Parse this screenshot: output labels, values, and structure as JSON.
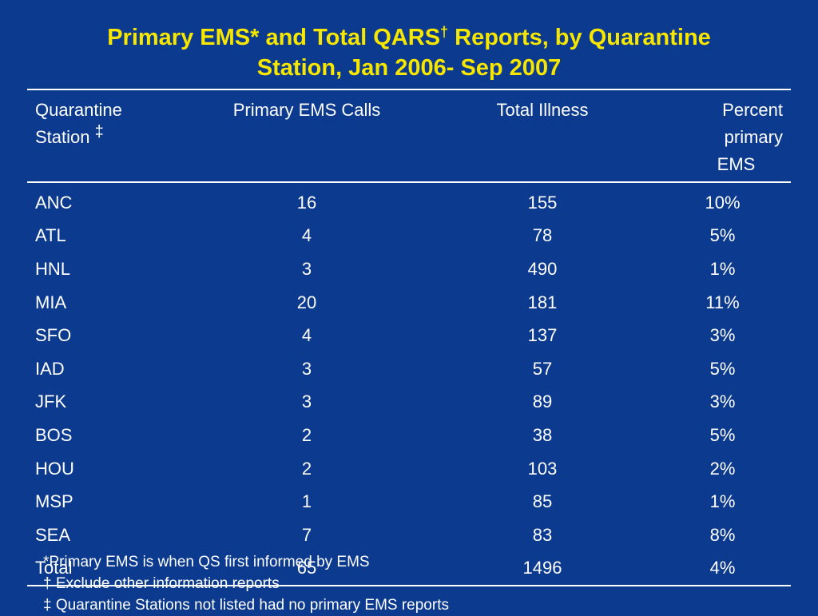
{
  "title": {
    "line1_a": "Primary EMS* and Total QARS",
    "line1_dagger": "†",
    "line1_b": " Reports, by Quarantine",
    "line2": "Station, Jan 2006- Sep 2007"
  },
  "table": {
    "headers": {
      "station_line1": "Quarantine",
      "station_line2": "Station",
      "station_mark": "‡",
      "ems": "Primary EMS Calls",
      "illness": "Total Illness",
      "pct_line1": "Percent primary",
      "pct_line2": "EMS"
    },
    "rows": [
      {
        "station": "ANC",
        "ems": "16",
        "illness": "155",
        "pct": "10%"
      },
      {
        "station": "ATL",
        "ems": "4",
        "illness": "78",
        "pct": "5%"
      },
      {
        "station": "HNL",
        "ems": "3",
        "illness": "490",
        "pct": "1%"
      },
      {
        "station": "MIA",
        "ems": "20",
        "illness": "181",
        "pct": "11%"
      },
      {
        "station": "SFO",
        "ems": "4",
        "illness": "137",
        "pct": "3%"
      },
      {
        "station": "IAD",
        "ems": "3",
        "illness": "57",
        "pct": "5%"
      },
      {
        "station": "JFK",
        "ems": "3",
        "illness": "89",
        "pct": "3%"
      },
      {
        "station": "BOS",
        "ems": "2",
        "illness": "38",
        "pct": "5%"
      },
      {
        "station": "HOU",
        "ems": "2",
        "illness": "103",
        "pct": "2%"
      },
      {
        "station": "MSP",
        "ems": "1",
        "illness": "85",
        "pct": "1%"
      },
      {
        "station": "SEA",
        "ems": "7",
        "illness": "83",
        "pct": "8%"
      },
      {
        "station": "Total",
        "ems": "65",
        "illness": "1496",
        "pct": "4%"
      }
    ]
  },
  "footnotes": [
    "*Primary EMS is when QS first informed by EMS",
    "† Exclude other information reports",
    "‡ Quarantine Stations not listed had no primary EMS reports"
  ],
  "colors": {
    "background": "#0b3a8e",
    "title": "#f6e600",
    "text": "#ffffff"
  }
}
